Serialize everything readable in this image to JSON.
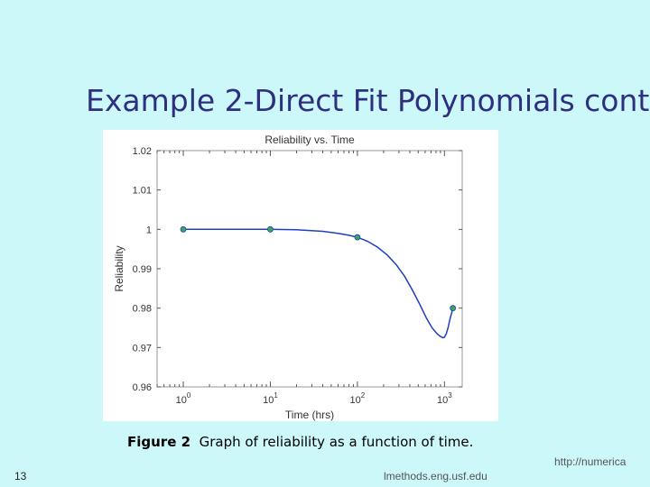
{
  "slide": {
    "title": "Example 2-Direct Fit Polynomials cont.",
    "caption_figure": "Figure 2",
    "caption_text": "Graph of reliability as a function of time.",
    "slide_number": "13",
    "footer_url_part1": "http://numerica",
    "footer_url_part2": "lmethods.eng.usf.edu"
  },
  "colors": {
    "background": "#ccf8fa",
    "title": "#2e2f7f",
    "curve": "#1f3fbf",
    "marker_fill": "#3aa65a"
  },
  "chart_data": {
    "type": "line",
    "title": "Reliability vs. Time",
    "xlabel": "Time (hrs)",
    "ylabel": "Reliability",
    "xscale": "log",
    "xlim": [
      0.5,
      1600
    ],
    "ylim": [
      0.96,
      1.02
    ],
    "xticks": [
      {
        "value": 1,
        "base": "10",
        "exp": "0"
      },
      {
        "value": 10,
        "base": "10",
        "exp": "1"
      },
      {
        "value": 100,
        "base": "10",
        "exp": "2"
      },
      {
        "value": 1000,
        "base": "10",
        "exp": "3"
      }
    ],
    "yticks": [
      {
        "value": 1.02,
        "label": "1.02"
      },
      {
        "value": 1.01,
        "label": "1.01"
      },
      {
        "value": 1.0,
        "label": "1"
      },
      {
        "value": 0.99,
        "label": "0.99"
      },
      {
        "value": 0.98,
        "label": "0.98"
      },
      {
        "value": 0.97,
        "label": "0.97"
      },
      {
        "value": 0.96,
        "label": "0.96"
      }
    ],
    "grid": false,
    "series": [
      {
        "kind": "curve",
        "x": [
          1,
          5,
          10,
          20,
          40,
          60,
          80,
          100,
          130,
          170,
          220,
          280,
          350,
          430,
          520,
          620,
          720,
          820,
          900,
          960,
          1000,
          1050,
          1100,
          1150,
          1250
        ],
        "y": [
          1.0,
          1.0,
          1.0,
          0.9999,
          0.9995,
          0.999,
          0.9985,
          0.998,
          0.997,
          0.9955,
          0.9935,
          0.991,
          0.988,
          0.9845,
          0.981,
          0.9775,
          0.975,
          0.9735,
          0.9728,
          0.9725,
          0.9726,
          0.9735,
          0.975,
          0.977,
          0.98
        ]
      },
      {
        "kind": "points",
        "x": [
          1,
          10,
          100,
          1250
        ],
        "y": [
          1.0,
          1.0,
          0.998,
          0.98
        ]
      }
    ]
  }
}
